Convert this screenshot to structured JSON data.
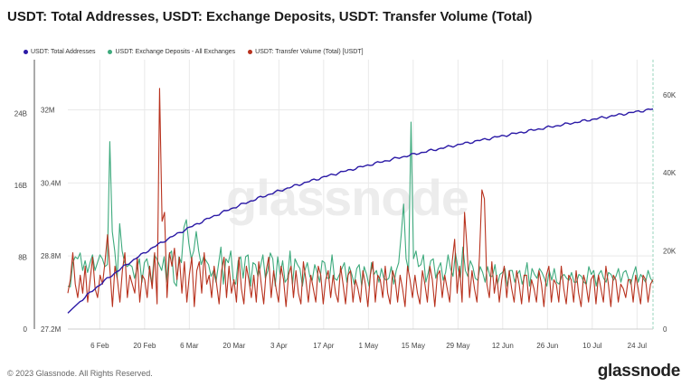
{
  "header": {
    "title": "USDT: Total Addresses, USDT: Exchange Deposits, USDT: Transfer Volume (Total)"
  },
  "watermark": "glassnode",
  "footer": {
    "copyright": "© 2023 Glassnode. All Rights Reserved.",
    "brand": "glassnode"
  },
  "colors": {
    "addresses": "#2b1aa6",
    "deposits": "#3eaa7d",
    "volume": "#b8321e",
    "grid": "#e9e9e9",
    "axis": "#555555"
  },
  "chart_data": {
    "type": "line",
    "x_ticks": [
      "6 Feb",
      "20 Feb",
      "6 Mar",
      "20 Mar",
      "3 Apr",
      "17 Apr",
      "1 May",
      "15 May",
      "29 May",
      "12 Jun",
      "26 Jun",
      "10 Jul",
      "24 Jul"
    ],
    "x_range": [
      "2023-01-27",
      "2023-07-29"
    ],
    "axes": {
      "volume_left": {
        "ticks": [
          "0",
          "8B",
          "16B",
          "24B"
        ],
        "values": [
          0,
          8000000000,
          16000000000,
          24000000000
        ],
        "range": [
          0,
          30000000000
        ]
      },
      "addresses_left": {
        "ticks": [
          "27.2M",
          "28.8M",
          "30.4M",
          "32M"
        ],
        "values": [
          27200000,
          28800000,
          30400000,
          32000000
        ],
        "range": [
          27200000,
          33100000
        ]
      },
      "deposits_right": {
        "ticks": [
          "0",
          "20K",
          "40K",
          "60K"
        ],
        "values": [
          0,
          20000,
          40000,
          60000
        ],
        "range": [
          0,
          69000
        ]
      }
    },
    "series": [
      {
        "name": "USDT: Total Addresses",
        "axis": "addresses_left",
        "start": 27.55,
        "end": 32.02,
        "unit": "M",
        "shape": "rising, concave (fast growth Feb–Mar, then steady)"
      },
      {
        "name": "USDT: Exchange Deposits - All Exchanges",
        "axis": "deposits_right",
        "values": [
          11000,
          10800,
          17000,
          18500,
          18000,
          19500,
          15000,
          17500,
          14500,
          17000,
          19000,
          15000,
          17000,
          19000,
          18000,
          16000,
          16500,
          48000,
          25000,
          20000,
          13000,
          27000,
          20000,
          17000,
          16000,
          16500,
          16000,
          13000,
          15500,
          18000,
          12000,
          17000,
          18000,
          15000,
          11500,
          19000,
          18000,
          16500,
          15000,
          18500,
          12000,
          19000,
          20000,
          12000,
          11000,
          18500,
          17000,
          26000,
          28000,
          22000,
          18000,
          20000,
          25000,
          20000,
          16500,
          18500,
          17500,
          16500,
          13500,
          15000,
          12000,
          16500,
          21000,
          11500,
          18000,
          17000,
          20000,
          12500,
          11500,
          17500,
          18500,
          13000,
          18500,
          19000,
          11000,
          17000,
          16500,
          13500,
          16000,
          19000,
          13000,
          15000,
          19500,
          18000,
          11000,
          18500,
          14000,
          17500,
          12000,
          13000,
          20000,
          11500,
          18000,
          16500,
          15500,
          11000,
          15000,
          17000,
          13500,
          12500,
          16500,
          14500,
          12000,
          17500,
          17000,
          13000,
          13000,
          19000,
          13000,
          12500,
          14000,
          15500,
          17000,
          12000,
          16000,
          14000,
          11500,
          15500,
          16500,
          11000,
          16000,
          14000,
          11000,
          17000,
          14000,
          15000,
          12000,
          15500,
          13000,
          12500,
          13000,
          16000,
          11500,
          15000,
          17000,
          24000,
          32000,
          18000,
          15000,
          53000,
          18000,
          20000,
          16000,
          16500,
          19000,
          12000,
          14500,
          17500,
          18000,
          13000,
          15500,
          17000,
          12500,
          14500,
          19000,
          15500,
          13500,
          19500,
          15500,
          13000,
          21000,
          15000,
          13500,
          17500,
          16000,
          13000,
          12500,
          16000,
          14500,
          12000,
          16000,
          13500,
          13500,
          16500,
          11500,
          14000,
          14500,
          15500,
          11000,
          15000,
          15000,
          12000,
          14000,
          15000,
          11500,
          13500,
          17000,
          11000,
          15500,
          14000,
          13000,
          15500,
          14500,
          13000,
          11000,
          15000,
          12500,
          15500,
          12000,
          11500,
          13500,
          14000,
          13000,
          12500,
          14500,
          12000,
          12000,
          14000,
          13500,
          12000,
          11500,
          16000,
          14000,
          15000,
          11000,
          14000,
          15000,
          13000,
          12000,
          14500,
          14000,
          12500,
          13500,
          15500,
          12000,
          14500,
          15000,
          13000,
          11500,
          14000,
          16000,
          12000,
          14000,
          13000,
          12000,
          15000,
          13000,
          12000
        ]
      },
      {
        "name": "USDT: Transfer Volume (Total) [USDT]",
        "axis": "volume_left",
        "values": [
          4000000000,
          5500000000,
          8500000000,
          5000000000,
          3500000000,
          6000000000,
          4000000000,
          7000000000,
          3000000000,
          5500000000,
          8000000000,
          4500000000,
          3500000000,
          6000000000,
          5000000000,
          7500000000,
          10500000000,
          6500000000,
          2500000000,
          7000000000,
          5500000000,
          3000000000,
          6500000000,
          8500000000,
          3500000000,
          6000000000,
          5000000000,
          4000000000,
          8000000000,
          3000000000,
          6000000000,
          5500000000,
          3500000000,
          7000000000,
          4500000000,
          8500000000,
          2800000000,
          26800000000,
          12000000000,
          13000000000,
          3500000000,
          8500000000,
          7000000000,
          9000000000,
          5500000000,
          8000000000,
          4000000000,
          7500000000,
          3000000000,
          6000000000,
          8000000000,
          2500000000,
          6500000000,
          7500000000,
          4000000000,
          8500000000,
          5000000000,
          6000000000,
          3500000000,
          7000000000,
          5000000000,
          2800000000,
          6500000000,
          8000000000,
          3500000000,
          7000000000,
          4000000000,
          5500000000,
          3000000000,
          8000000000,
          4500000000,
          2800000000,
          7000000000,
          5500000000,
          3500000000,
          6000000000,
          3000000000,
          7500000000,
          5000000000,
          2800000000,
          6500000000,
          8000000000,
          3500000000,
          6500000000,
          4500000000,
          3000000000,
          7000000000,
          5500000000,
          2500000000,
          6000000000,
          7000000000,
          3500000000,
          6500000000,
          4000000000,
          2800000000,
          7500000000,
          5500000000,
          3000000000,
          6000000000,
          4500000000,
          3000000000,
          7000000000,
          6000000000,
          2800000000,
          5500000000,
          6500000000,
          3500000000,
          6000000000,
          4000000000,
          3000000000,
          7000000000,
          5000000000,
          2800000000,
          6000000000,
          6500000000,
          3000000000,
          5500000000,
          4500000000,
          3000000000,
          6500000000,
          5000000000,
          2500000000,
          6000000000,
          7500000000,
          3000000000,
          6000000000,
          5500000000,
          3500000000,
          7000000000,
          4000000000,
          2800000000,
          6500000000,
          5500000000,
          3000000000,
          6000000000,
          4500000000,
          2500000000,
          7000000000,
          5500000000,
          3500000000,
          6000000000,
          4000000000,
          2800000000,
          6500000000,
          5000000000,
          3000000000,
          7000000000,
          5500000000,
          2500000000,
          6000000000,
          6500000000,
          3500000000,
          6000000000,
          4500000000,
          3000000000,
          7500000000,
          10000000000,
          4000000000,
          7000000000,
          3000000000,
          13000000000,
          9000000000,
          3500000000,
          6500000000,
          4500000000,
          3000000000,
          8000000000,
          15500000000,
          14500000000,
          5000000000,
          3500000000,
          7500000000,
          4000000000,
          6000000000,
          3000000000,
          5500000000,
          7000000000,
          3500000000,
          6500000000,
          4500000000,
          3000000000,
          6500000000,
          5000000000,
          2800000000,
          6000000000,
          6000000000,
          3000000000,
          5500000000,
          4500000000,
          3000000000,
          6500000000,
          5000000000,
          2500000000,
          6000000000,
          7000000000,
          3000000000,
          5500000000,
          5000000000,
          3000000000,
          7000000000,
          4500000000,
          2800000000,
          6000000000,
          5500000000,
          3000000000,
          6500000000,
          4000000000,
          2500000000,
          6000000000,
          5000000000,
          3000000000,
          5500000000,
          6000000000,
          2800000000,
          6000000000,
          4500000000,
          3000000000,
          7000000000,
          5000000000,
          2500000000,
          6000000000,
          5500000000,
          3000000000,
          5000000000,
          4500000000,
          3500000000,
          5500000000,
          5500000000,
          3000000000,
          6000000000,
          4500000000,
          2800000000,
          6000000000,
          5500000000,
          3000000000,
          5000000000,
          5500000000
        ]
      }
    ],
    "grid": true,
    "legend_position": "top-left"
  }
}
